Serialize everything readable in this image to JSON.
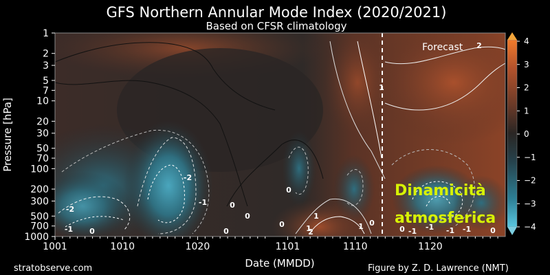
{
  "chart_data": {
    "type": "heatmap",
    "title": "GFS Northern Annular Mode Index (2020/2021)",
    "subtitle": "Based on CFSR climatology",
    "xlabel": "Date (MMDD)",
    "ylabel": "Pressure [hPa]",
    "x_ticks": [
      "1001",
      "1010",
      "1020",
      "1101",
      "1110",
      "1120"
    ],
    "y_ticks": [
      "1",
      "2",
      "3",
      "5",
      "7",
      "10",
      "20",
      "30",
      "50",
      "70",
      "100",
      "200",
      "300",
      "500",
      "700",
      "1000"
    ],
    "y_scale": "log",
    "ylim": [
      1000,
      1
    ],
    "colorbar": {
      "ticks": [
        "4",
        "3",
        "2",
        "1",
        "0",
        "−1",
        "−2",
        "−3",
        "−4"
      ],
      "range": [
        -4,
        4
      ],
      "colors": {
        "neg_max": "#3aa6c0",
        "neg_mid": "#2e5a68",
        "zero": "#2a2624",
        "pos_mid": "#7a3c24",
        "pos_max": "#e2622e"
      }
    },
    "forecast_label": "Forecast",
    "forecast_start": "1115",
    "contour_labels": [
      "2",
      "1",
      "-2",
      "-1",
      "0",
      "0",
      "-2",
      "-1",
      "0",
      "0",
      "1",
      "2",
      "1",
      "0",
      "-1",
      "-1",
      "0",
      "-1",
      "1",
      "0",
      "0",
      "0",
      "-1"
    ],
    "left_credit": "stratobserve.com",
    "right_credit": "Figure by Z. D. Lawrence (NMT)",
    "overlay_text": [
      "Dinamicità",
      "atmosferica"
    ]
  }
}
